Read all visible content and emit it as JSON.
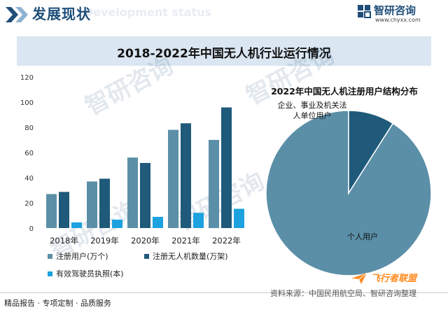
{
  "header": {
    "title": "发展现状",
    "ghost_text": "Development status"
  },
  "brand": {
    "name": "智研咨询",
    "url": "www.chyxx.com"
  },
  "main_title": "2018-2022年中国无人机行业运行情况",
  "watermark_text": "智研咨询",
  "colors": {
    "registered_users": "#5b8fa8",
    "registered_drones": "#1f5a7a",
    "licenses": "#1ba2df",
    "pie_individual": "#5b8fa8",
    "pie_enterprise": "#1f5a7a",
    "header_accent": "#1f4e79",
    "title_bar": "#dae6f1",
    "stamp": "#ff8a1f"
  },
  "chart_data": [
    {
      "type": "bar",
      "categories": [
        "2018年",
        "2019年",
        "2020年",
        "2021年",
        "2022年"
      ],
      "series": [
        {
          "name": "注册用户(万个)",
          "values": [
            27,
            37,
            56,
            78,
            70
          ]
        },
        {
          "name": "注册无人机数量(万架)",
          "values": [
            28.7,
            39.2,
            51.7,
            83.2,
            95.8
          ]
        },
        {
          "name": "有效驾驶员执照(本)",
          "values": [
            4.5,
            6.7,
            8.9,
            12.1,
            15.3
          ]
        }
      ],
      "yticks": [
        0,
        20,
        40,
        60,
        80,
        100,
        120
      ],
      "ylim": [
        0,
        120
      ],
      "grid": false,
      "legend_position": "bottom"
    },
    {
      "type": "pie",
      "title": "2022年中国无人机注册用户结构分布",
      "slices": [
        {
          "label": "个人用户",
          "value": 91
        },
        {
          "label": "企业、事业及机关法人单位用户",
          "value": 9
        }
      ],
      "slice_labels": [
        "个人用户",
        "企业、事业及机关法",
        "人单位用户"
      ]
    }
  ],
  "footer": {
    "left": "精品报告 · 专项定制 · 品质服务",
    "source": "资料来源：中国民用航空局、智研咨询整理"
  },
  "corner_stamp": {
    "text": "飞行者联盟"
  }
}
